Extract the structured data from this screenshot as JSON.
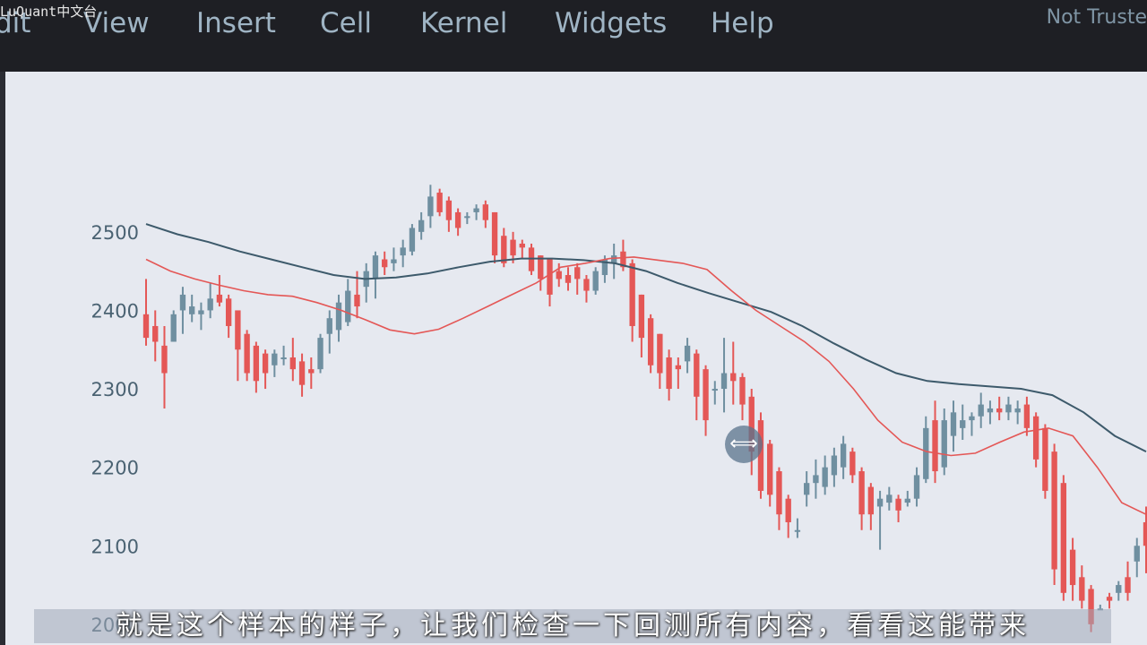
{
  "menubar": {
    "items": [
      "dit",
      "View",
      "Insert",
      "Cell",
      "Kernel",
      "Widgets",
      "Help"
    ],
    "trust_status": "Not Truste"
  },
  "watermark": "LuQuant中文台",
  "subtitle": "就是这个样本的样子，让我们检查一下回测所有内容，看看这能带来",
  "cursor_icon": "resize-horizontal-icon",
  "chart_data": {
    "type": "candlestick",
    "ylim": [
      1985,
      2590
    ],
    "yticks": [
      2000,
      2100,
      2200,
      2300,
      2400,
      2500
    ],
    "grid": false,
    "colors": {
      "up": "#6f8fa0",
      "down": "#e45756",
      "ma_fast": "#e45756",
      "ma_slow": "#3d5a6b",
      "background": "#e6e9f0"
    },
    "candles": [
      [
        2395,
        2440,
        2355,
        2365
      ],
      [
        2380,
        2400,
        2335,
        2360
      ],
      [
        2355,
        2380,
        2275,
        2320
      ],
      [
        2360,
        2400,
        2360,
        2395
      ],
      [
        2400,
        2430,
        2370,
        2420
      ],
      [
        2395,
        2420,
        2385,
        2405
      ],
      [
        2395,
        2410,
        2375,
        2400
      ],
      [
        2400,
        2435,
        2390,
        2415
      ],
      [
        2420,
        2445,
        2405,
        2410
      ],
      [
        2415,
        2420,
        2365,
        2380
      ],
      [
        2400,
        2400,
        2310,
        2350
      ],
      [
        2370,
        2375,
        2310,
        2320
      ],
      [
        2355,
        2360,
        2295,
        2310
      ],
      [
        2345,
        2350,
        2300,
        2320
      ],
      [
        2330,
        2350,
        2315,
        2345
      ],
      [
        2340,
        2355,
        2330,
        2340
      ],
      [
        2340,
        2365,
        2310,
        2325
      ],
      [
        2335,
        2345,
        2290,
        2305
      ],
      [
        2325,
        2340,
        2300,
        2320
      ],
      [
        2325,
        2370,
        2320,
        2365
      ],
      [
        2370,
        2400,
        2345,
        2390
      ],
      [
        2375,
        2420,
        2360,
        2410
      ],
      [
        2385,
        2440,
        2380,
        2425
      ],
      [
        2420,
        2450,
        2390,
        2405
      ],
      [
        2430,
        2460,
        2410,
        2450
      ],
      [
        2440,
        2475,
        2415,
        2470
      ],
      [
        2465,
        2475,
        2445,
        2455
      ],
      [
        2460,
        2480,
        2450,
        2465
      ],
      [
        2470,
        2490,
        2455,
        2480
      ],
      [
        2475,
        2510,
        2470,
        2505
      ],
      [
        2500,
        2525,
        2490,
        2515
      ],
      [
        2520,
        2560,
        2505,
        2545
      ],
      [
        2550,
        2555,
        2520,
        2525
      ],
      [
        2540,
        2545,
        2500,
        2515
      ],
      [
        2525,
        2530,
        2495,
        2505
      ],
      [
        2520,
        2525,
        2510,
        2520
      ],
      [
        2525,
        2535,
        2515,
        2530
      ],
      [
        2535,
        2540,
        2505,
        2515
      ],
      [
        2525,
        2525,
        2460,
        2470
      ],
      [
        2495,
        2505,
        2455,
        2460
      ],
      [
        2490,
        2500,
        2460,
        2470
      ],
      [
        2485,
        2490,
        2465,
        2480
      ],
      [
        2480,
        2485,
        2445,
        2450
      ],
      [
        2470,
        2470,
        2425,
        2440
      ],
      [
        2465,
        2465,
        2405,
        2420
      ],
      [
        2450,
        2460,
        2430,
        2440
      ],
      [
        2445,
        2455,
        2425,
        2435
      ],
      [
        2455,
        2460,
        2420,
        2440
      ],
      [
        2440,
        2445,
        2410,
        2425
      ],
      [
        2425,
        2455,
        2420,
        2450
      ],
      [
        2445,
        2470,
        2435,
        2465
      ],
      [
        2460,
        2485,
        2440,
        2470
      ],
      [
        2475,
        2490,
        2450,
        2455
      ],
      [
        2460,
        2465,
        2360,
        2380
      ],
      [
        2420,
        2420,
        2340,
        2365
      ],
      [
        2390,
        2395,
        2320,
        2330
      ],
      [
        2370,
        2370,
        2300,
        2320
      ],
      [
        2340,
        2350,
        2285,
        2300
      ],
      [
        2330,
        2340,
        2300,
        2325
      ],
      [
        2335,
        2365,
        2320,
        2355
      ],
      [
        2345,
        2350,
        2260,
        2290
      ],
      [
        2325,
        2330,
        2240,
        2260
      ],
      [
        2300,
        2310,
        2280,
        2300
      ],
      [
        2300,
        2365,
        2270,
        2320
      ],
      [
        2320,
        2360,
        2280,
        2310
      ],
      [
        2315,
        2320,
        2260,
        2280
      ],
      [
        2290,
        2300,
        2190,
        2220
      ],
      [
        2260,
        2270,
        2160,
        2170
      ],
      [
        2230,
        2235,
        2150,
        2165
      ],
      [
        2195,
        2200,
        2120,
        2140
      ],
      [
        2160,
        2165,
        2110,
        2130
      ],
      [
        2120,
        2135,
        2110,
        2120
      ],
      [
        2165,
        2195,
        2150,
        2180
      ],
      [
        2180,
        2210,
        2160,
        2190
      ],
      [
        2175,
        2215,
        2165,
        2200
      ],
      [
        2190,
        2225,
        2175,
        2215
      ],
      [
        2200,
        2240,
        2185,
        2230
      ],
      [
        2220,
        2225,
        2180,
        2190
      ],
      [
        2195,
        2200,
        2120,
        2140
      ],
      [
        2175,
        2180,
        2120,
        2140
      ],
      [
        2150,
        2170,
        2095,
        2160
      ],
      [
        2155,
        2175,
        2145,
        2165
      ],
      [
        2160,
        2165,
        2130,
        2145
      ],
      [
        2155,
        2170,
        2150,
        2160
      ],
      [
        2160,
        2200,
        2150,
        2190
      ],
      [
        2185,
        2265,
        2180,
        2250
      ],
      [
        2260,
        2285,
        2180,
        2195
      ],
      [
        2200,
        2275,
        2190,
        2260
      ],
      [
        2240,
        2285,
        2220,
        2270
      ],
      [
        2250,
        2280,
        2235,
        2260
      ],
      [
        2260,
        2270,
        2240,
        2265
      ],
      [
        2265,
        2295,
        2250,
        2280
      ],
      [
        2270,
        2285,
        2255,
        2275
      ],
      [
        2275,
        2290,
        2260,
        2270
      ],
      [
        2270,
        2290,
        2260,
        2280
      ],
      [
        2270,
        2285,
        2255,
        2275
      ],
      [
        2280,
        2290,
        2240,
        2250
      ],
      [
        2265,
        2270,
        2200,
        2210
      ],
      [
        2250,
        2255,
        2160,
        2170
      ],
      [
        2220,
        2230,
        2050,
        2070
      ],
      [
        2180,
        2190,
        2030,
        2040
      ],
      [
        2095,
        2110,
        2030,
        2050
      ],
      [
        2060,
        2075,
        2020,
        2030
      ],
      [
        2045,
        2050,
        1990,
        2000
      ],
      [
        2020,
        2025,
        2020,
        2020
      ],
      [
        2035,
        2040,
        2020,
        2030
      ],
      [
        2040,
        2055,
        2030,
        2050
      ],
      [
        2060,
        2080,
        2030,
        2040
      ],
      [
        2080,
        2110,
        2060,
        2100
      ],
      [
        2130,
        2150,
        2065,
        2100
      ]
    ],
    "ma_fast": [
      2465,
      2450,
      2440,
      2432,
      2425,
      2420,
      2418,
      2410,
      2400,
      2388,
      2375,
      2370,
      2376,
      2390,
      2405,
      2420,
      2435,
      2455,
      2460,
      2466,
      2468,
      2464,
      2460,
      2452,
      2425,
      2400,
      2380,
      2360,
      2335,
      2300,
      2260,
      2232,
      2220,
      2215,
      2218,
      2232,
      2245,
      2250,
      2240,
      2200,
      2155,
      2140
    ],
    "ma_slow": [
      2510,
      2497,
      2487,
      2475,
      2465,
      2455,
      2445,
      2440,
      2442,
      2447,
      2455,
      2462,
      2466,
      2466,
      2464,
      2460,
      2450,
      2435,
      2422,
      2410,
      2398,
      2380,
      2358,
      2338,
      2320,
      2310,
      2306,
      2303,
      2300,
      2292,
      2270,
      2240,
      2220
    ]
  }
}
